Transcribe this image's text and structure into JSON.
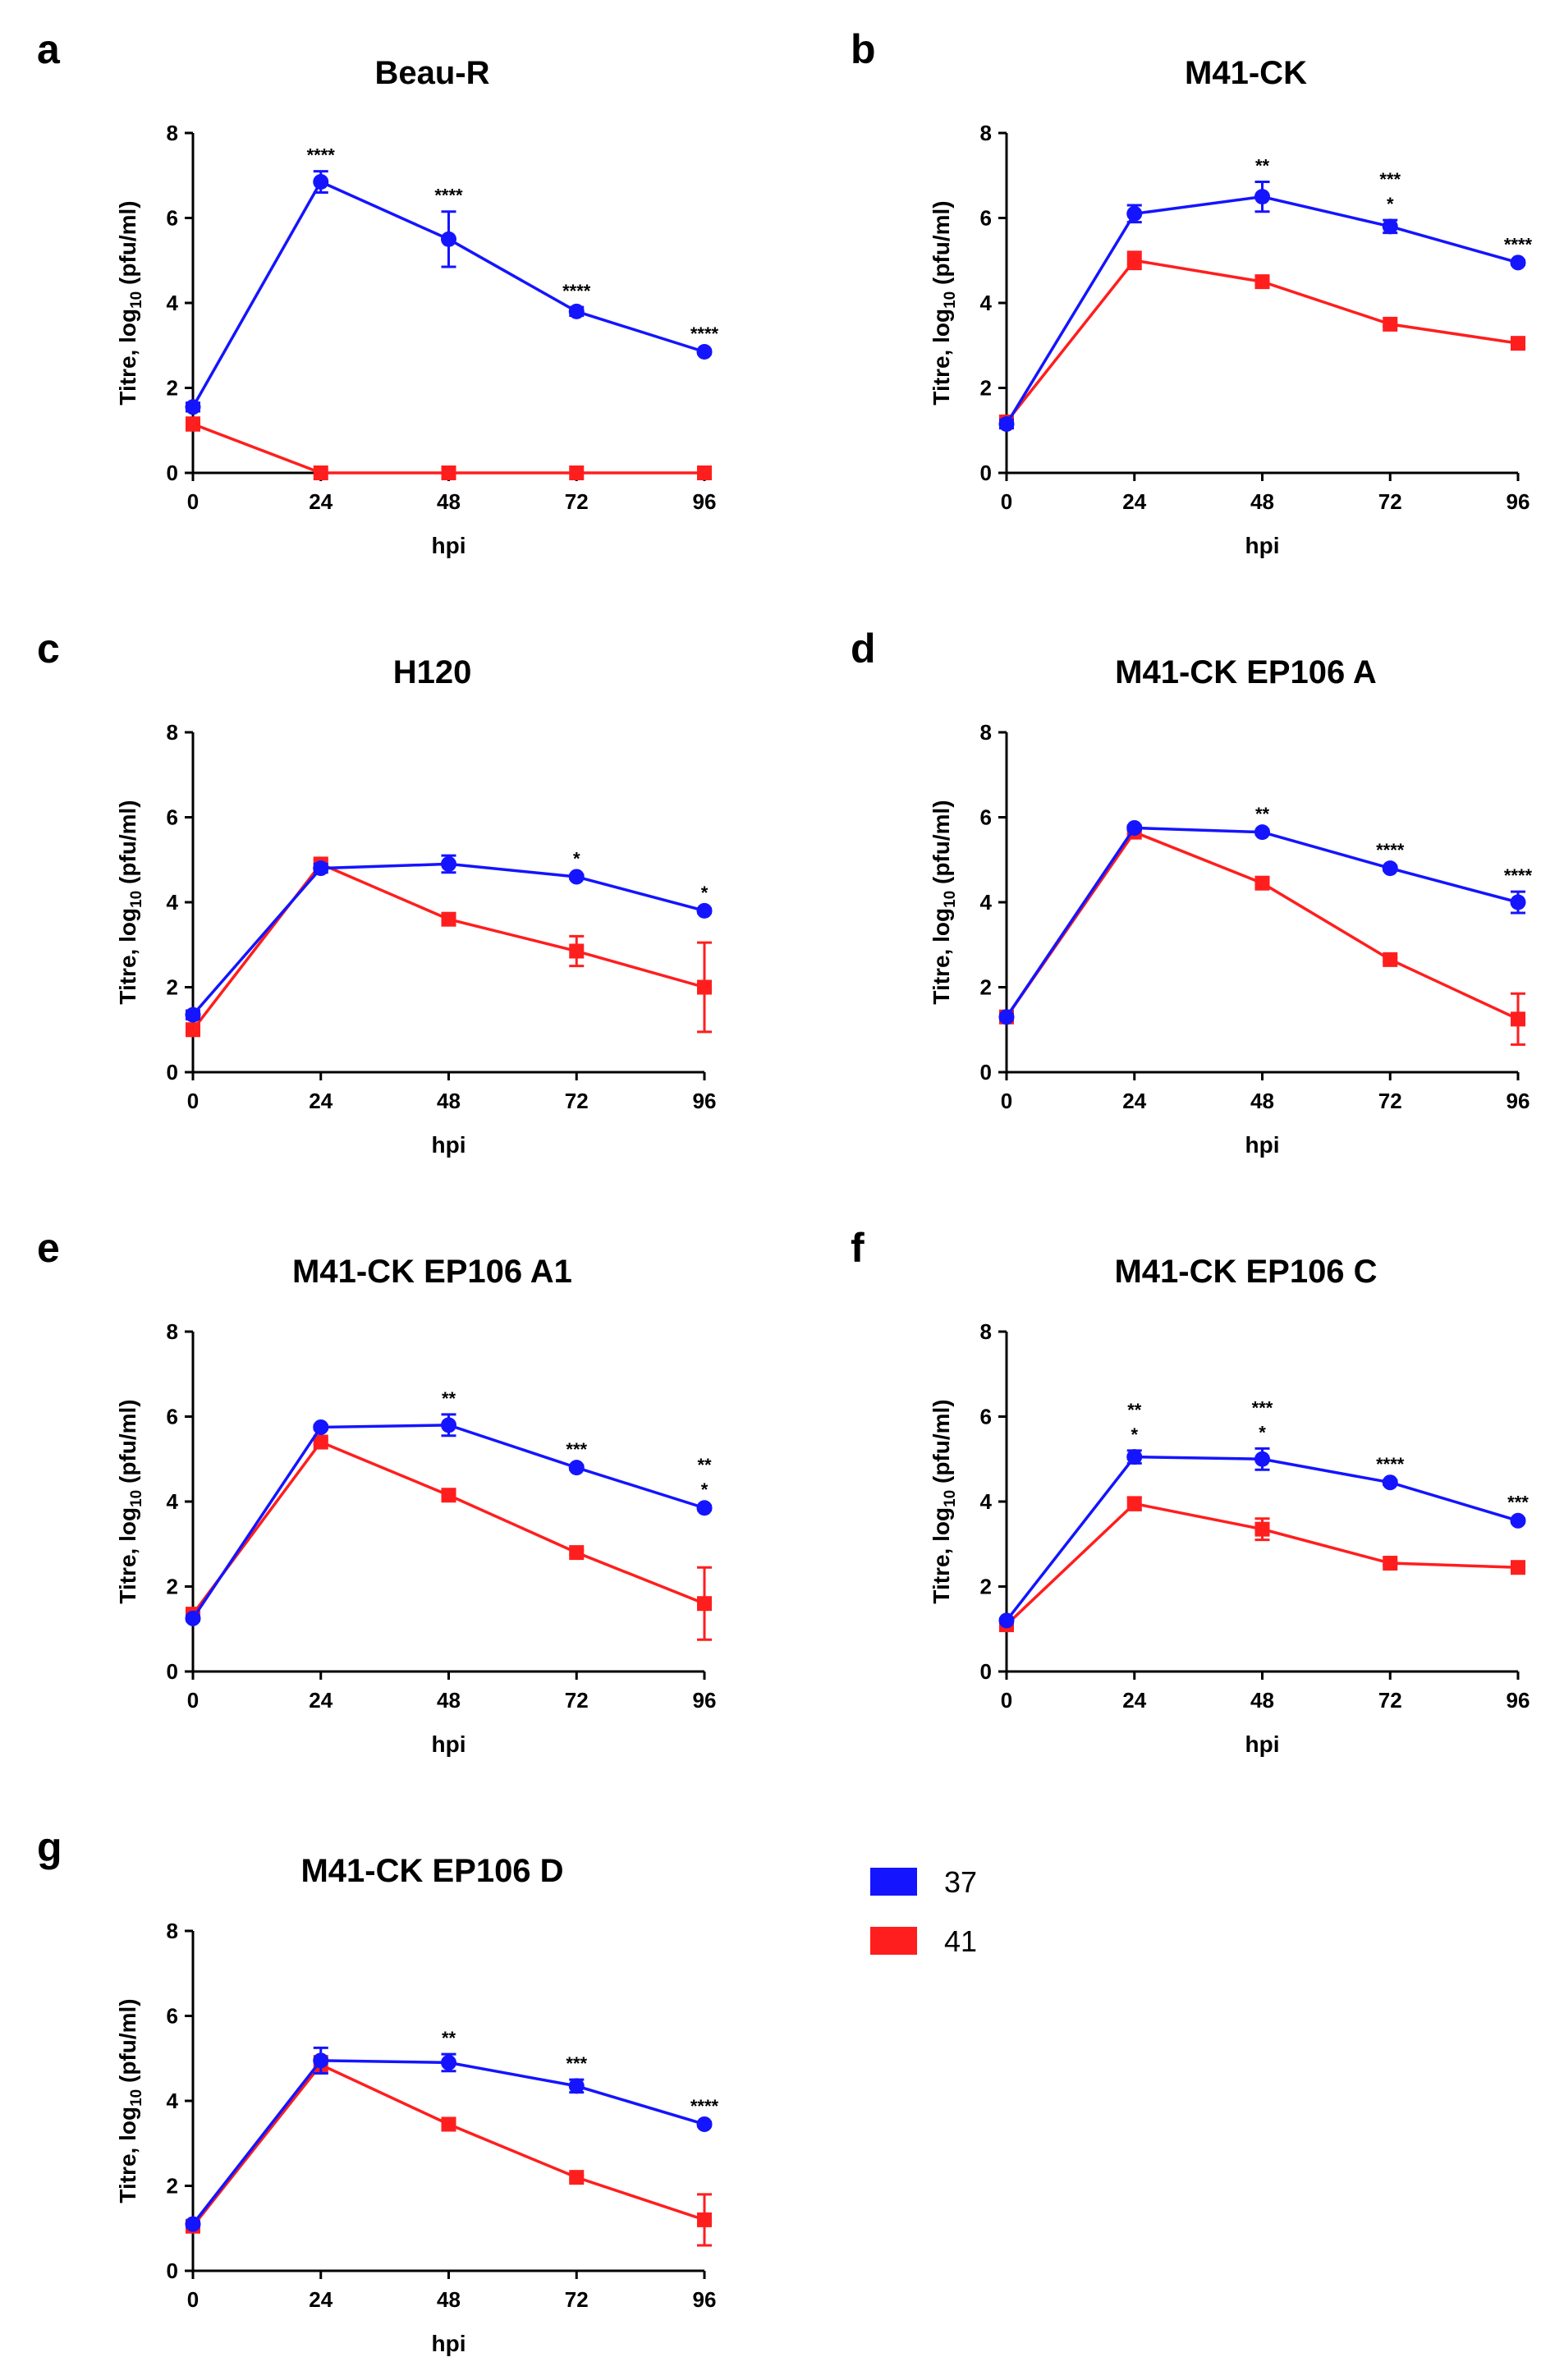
{
  "colors": {
    "s37": "#1414ff",
    "s41": "#ff1e1e"
  },
  "legend": [
    {
      "label": "37",
      "color": "#1414ff"
    },
    {
      "label": "41",
      "color": "#ff1e1e"
    }
  ],
  "chart_data": [
    {
      "panel": "a",
      "title": "Beau-R",
      "type": "line",
      "xlabel": "hpi",
      "ylabel": "Titre, log10 (pfu/ml)",
      "x": [
        0,
        24,
        48,
        72,
        96
      ],
      "xlim": [
        0,
        96
      ],
      "ylim": [
        0,
        8
      ],
      "xticks": [
        "0",
        "24",
        "48",
        "72",
        "96"
      ],
      "yticks": [
        "0",
        "2",
        "4",
        "6",
        "8"
      ],
      "series": [
        {
          "name": "37",
          "values": [
            1.55,
            6.85,
            5.5,
            3.8,
            2.85
          ],
          "errors": [
            0.1,
            0.25,
            0.65,
            0.1,
            0.05
          ]
        },
        {
          "name": "41",
          "values": [
            1.15,
            0,
            0,
            0,
            0
          ],
          "errors": [
            0.15,
            0,
            0,
            0,
            0
          ]
        }
      ],
      "significance": [
        null,
        [
          "****"
        ],
        [
          "****"
        ],
        [
          "****"
        ],
        [
          "****"
        ]
      ]
    },
    {
      "panel": "b",
      "title": "M41-CK",
      "type": "line",
      "xlabel": "hpi",
      "ylabel": "Titre, log10 (pfu/ml)",
      "x": [
        0,
        24,
        48,
        72,
        96
      ],
      "xlim": [
        0,
        96
      ],
      "ylim": [
        0,
        8
      ],
      "xticks": [
        "0",
        "24",
        "48",
        "72",
        "96"
      ],
      "yticks": [
        "0",
        "2",
        "4",
        "6",
        "8"
      ],
      "series": [
        {
          "name": "37",
          "values": [
            1.15,
            6.1,
            6.5,
            5.8,
            4.95
          ],
          "errors": [
            0.1,
            0.2,
            0.35,
            0.15,
            0.05
          ]
        },
        {
          "name": "41",
          "values": [
            1.2,
            5.0,
            4.5,
            3.5,
            3.05
          ],
          "errors": [
            0.1,
            0.2,
            0.1,
            0.05,
            0.1
          ]
        }
      ],
      "significance": [
        null,
        null,
        [
          "**"
        ],
        [
          "***",
          "*"
        ],
        [
          "****"
        ]
      ]
    },
    {
      "panel": "c",
      "title": "H120",
      "type": "line",
      "xlabel": "hpi",
      "ylabel": "Titre, log10 (pfu/ml)",
      "x": [
        0,
        24,
        48,
        72,
        96
      ],
      "xlim": [
        0,
        96
      ],
      "ylim": [
        0,
        8
      ],
      "xticks": [
        "0",
        "24",
        "48",
        "72",
        "96"
      ],
      "yticks": [
        "0",
        "2",
        "4",
        "6",
        "8"
      ],
      "series": [
        {
          "name": "37",
          "values": [
            1.35,
            4.8,
            4.9,
            4.6,
            3.8
          ],
          "errors": [
            0.1,
            0.1,
            0.2,
            0.05,
            0.05
          ]
        },
        {
          "name": "41",
          "values": [
            1.0,
            4.9,
            3.6,
            2.85,
            2.0
          ],
          "errors": [
            0.1,
            0.1,
            0.05,
            0.35,
            1.05
          ]
        }
      ],
      "significance": [
        null,
        null,
        null,
        [
          "*"
        ],
        [
          "*"
        ]
      ]
    },
    {
      "panel": "d",
      "title": "M41-CK EP106 A",
      "type": "line",
      "xlabel": "hpi",
      "ylabel": "Titre, log10 (pfu/ml)",
      "x": [
        0,
        24,
        48,
        72,
        96
      ],
      "xlim": [
        0,
        96
      ],
      "ylim": [
        0,
        8
      ],
      "xticks": [
        "0",
        "24",
        "48",
        "72",
        "96"
      ],
      "yticks": [
        "0",
        "2",
        "4",
        "6",
        "8"
      ],
      "series": [
        {
          "name": "37",
          "values": [
            1.3,
            5.75,
            5.65,
            4.8,
            4.0
          ],
          "errors": [
            0.05,
            0.05,
            0.05,
            0.05,
            0.25
          ]
        },
        {
          "name": "41",
          "values": [
            1.3,
            5.65,
            4.45,
            2.65,
            1.25
          ],
          "errors": [
            0.05,
            0.05,
            0.1,
            0.05,
            0.6
          ]
        }
      ],
      "significance": [
        null,
        null,
        [
          "**"
        ],
        [
          "****"
        ],
        [
          "****"
        ]
      ]
    },
    {
      "panel": "e",
      "title": "M41-CK EP106 A1",
      "type": "line",
      "xlabel": "hpi",
      "ylabel": "Titre, log10 (pfu/ml)",
      "x": [
        0,
        24,
        48,
        72,
        96
      ],
      "xlim": [
        0,
        96
      ],
      "ylim": [
        0,
        8
      ],
      "xticks": [
        "0",
        "24",
        "48",
        "72",
        "96"
      ],
      "yticks": [
        "0",
        "2",
        "4",
        "6",
        "8"
      ],
      "series": [
        {
          "name": "37",
          "values": [
            1.25,
            5.75,
            5.8,
            4.8,
            3.85
          ],
          "errors": [
            0.05,
            0.05,
            0.25,
            0.05,
            0.05
          ]
        },
        {
          "name": "41",
          "values": [
            1.35,
            5.4,
            4.15,
            2.8,
            1.6
          ],
          "errors": [
            0.05,
            0.05,
            0.1,
            0.05,
            0.85
          ]
        }
      ],
      "significance": [
        null,
        null,
        [
          "**"
        ],
        [
          "***"
        ],
        [
          "**",
          "*"
        ]
      ]
    },
    {
      "panel": "f",
      "title": "M41-CK EP106 C",
      "type": "line",
      "xlabel": "hpi",
      "ylabel": "Titre, log10 (pfu/ml)",
      "x": [
        0,
        24,
        48,
        72,
        96
      ],
      "xlim": [
        0,
        96
      ],
      "ylim": [
        0,
        8
      ],
      "xticks": [
        "0",
        "24",
        "48",
        "72",
        "96"
      ],
      "yticks": [
        "0",
        "2",
        "4",
        "6",
        "8"
      ],
      "series": [
        {
          "name": "37",
          "values": [
            1.2,
            5.05,
            5.0,
            4.45,
            3.55
          ],
          "errors": [
            0.05,
            0.15,
            0.25,
            0.05,
            0.05
          ]
        },
        {
          "name": "41",
          "values": [
            1.1,
            3.95,
            3.35,
            2.55,
            2.45
          ],
          "errors": [
            0.05,
            0.15,
            0.25,
            0.05,
            0.05
          ]
        }
      ],
      "significance": [
        null,
        [
          "**",
          "*"
        ],
        [
          "***",
          "*"
        ],
        [
          "****"
        ],
        [
          "***"
        ]
      ]
    },
    {
      "panel": "g",
      "title": "M41-CK EP106 D",
      "type": "line",
      "xlabel": "hpi",
      "ylabel": "Titre, log10 (pfu/ml)",
      "x": [
        0,
        24,
        48,
        72,
        96
      ],
      "xlim": [
        0,
        96
      ],
      "ylim": [
        0,
        8
      ],
      "xticks": [
        "0",
        "24",
        "48",
        "72",
        "96"
      ],
      "yticks": [
        "0",
        "2",
        "4",
        "6",
        "8"
      ],
      "series": [
        {
          "name": "37",
          "values": [
            1.1,
            4.95,
            4.9,
            4.35,
            3.45
          ],
          "errors": [
            0.05,
            0.3,
            0.2,
            0.15,
            0.05
          ]
        },
        {
          "name": "41",
          "values": [
            1.05,
            4.85,
            3.45,
            2.2,
            1.2
          ],
          "errors": [
            0.05,
            0.2,
            0.05,
            0.05,
            0.6
          ]
        }
      ],
      "significance": [
        null,
        null,
        [
          "**"
        ],
        [
          "***"
        ],
        [
          "****"
        ]
      ]
    }
  ]
}
